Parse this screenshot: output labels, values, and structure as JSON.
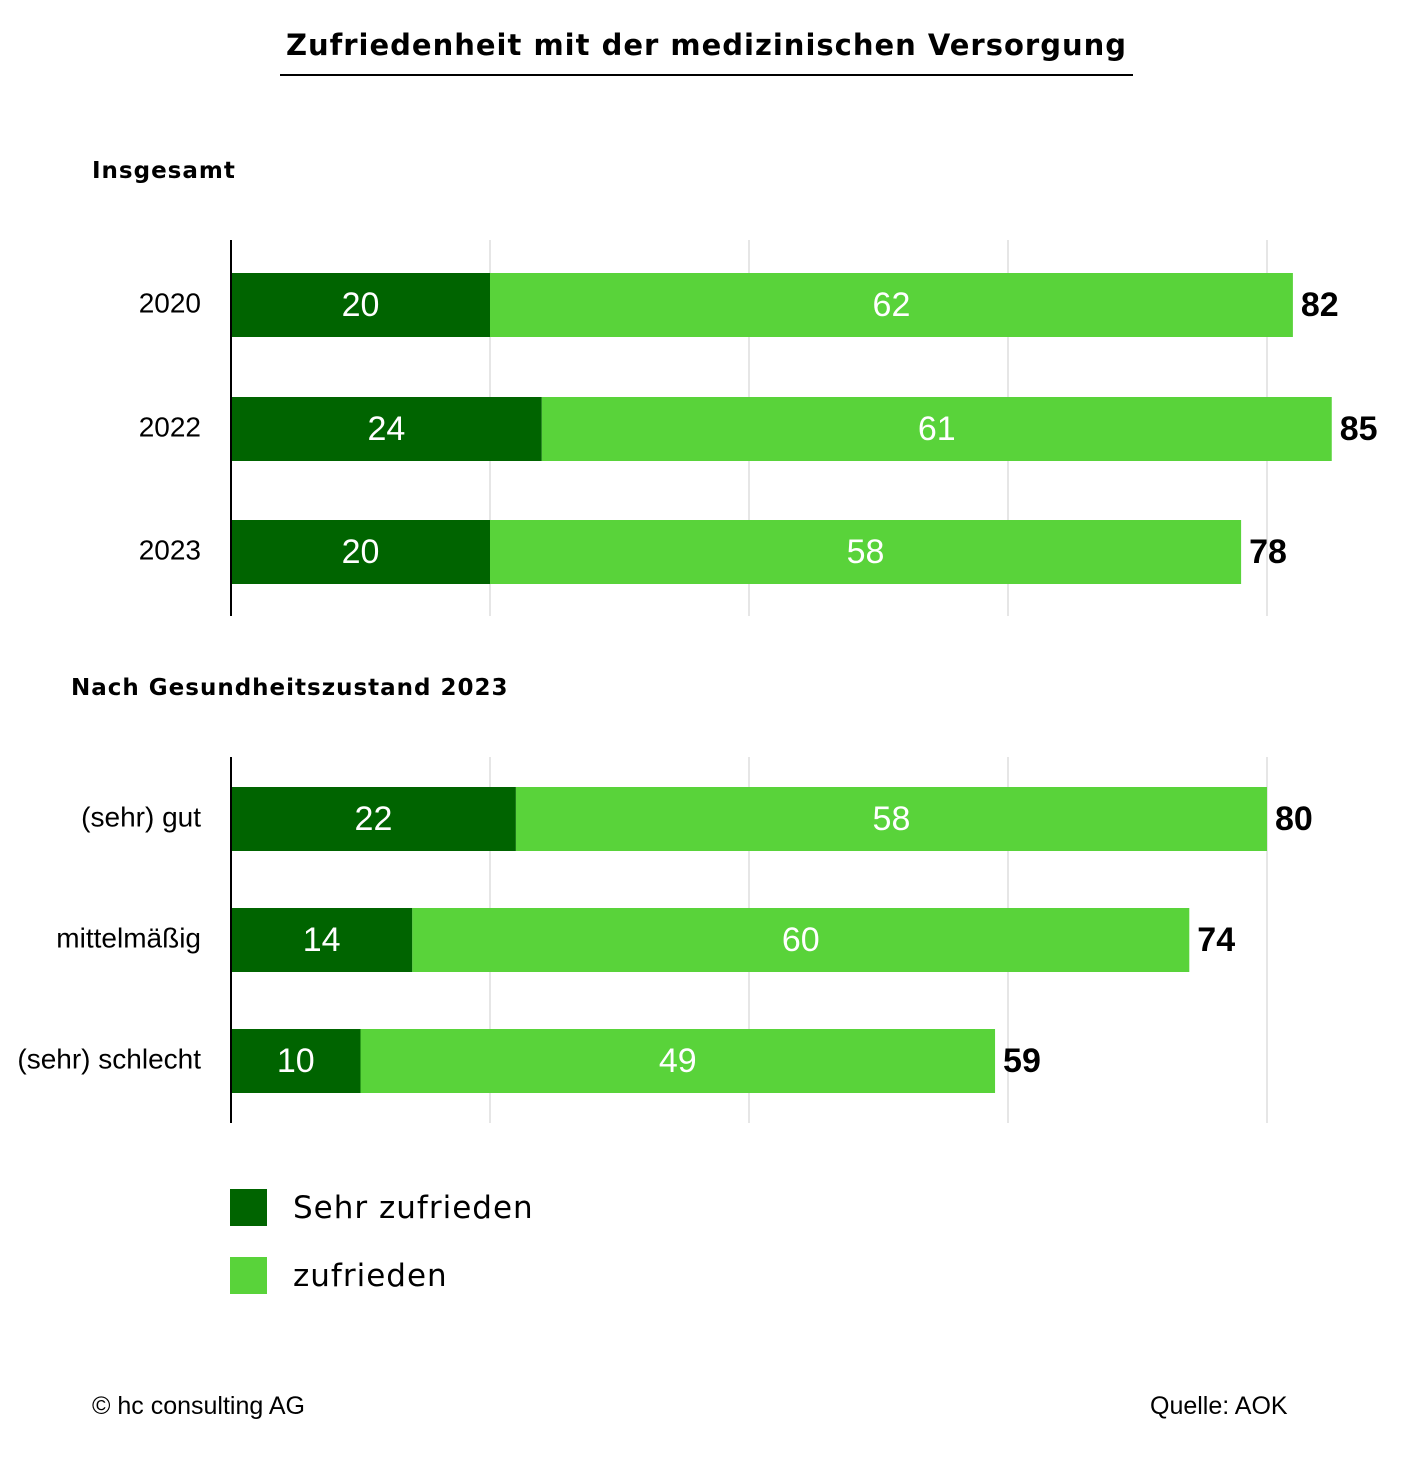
{
  "title": "Zufriedenheit mit der medizinischen Versorgung",
  "colors": {
    "sehr_zufrieden": "#006400",
    "zufrieden": "#59d33a",
    "grid": "#cccccc",
    "axis": "#000000"
  },
  "chart_data": [
    {
      "type": "bar",
      "orientation": "horizontal",
      "stacked": true,
      "title": "Insgesamt",
      "categories": [
        "2020",
        "2022",
        "2023"
      ],
      "series": [
        {
          "name": "Sehr zufrieden",
          "values": [
            20,
            24,
            20
          ]
        },
        {
          "name": "zufrieden",
          "values": [
            62,
            61,
            58
          ]
        }
      ],
      "totals": [
        82,
        85,
        78
      ],
      "xlim": [
        0,
        90
      ],
      "grid": true
    },
    {
      "type": "bar",
      "orientation": "horizontal",
      "stacked": true,
      "title": "Nach Gesundheitszustand 2023",
      "categories": [
        "(sehr) gut",
        "mittelmäßig",
        "(sehr) schlecht"
      ],
      "series": [
        {
          "name": "Sehr zufrieden",
          "values": [
            22,
            14,
            10
          ]
        },
        {
          "name": "zufrieden",
          "values": [
            58,
            60,
            49
          ]
        }
      ],
      "totals": [
        80,
        74,
        59
      ],
      "xlim": [
        0,
        80
      ],
      "grid": true
    }
  ],
  "legend": [
    {
      "label": "Sehr zufrieden",
      "color": "#006400"
    },
    {
      "label": "zufrieden",
      "color": "#59d33a"
    }
  ],
  "footer": {
    "copyright": "© hc consulting AG",
    "source": "Quelle: AOK"
  }
}
